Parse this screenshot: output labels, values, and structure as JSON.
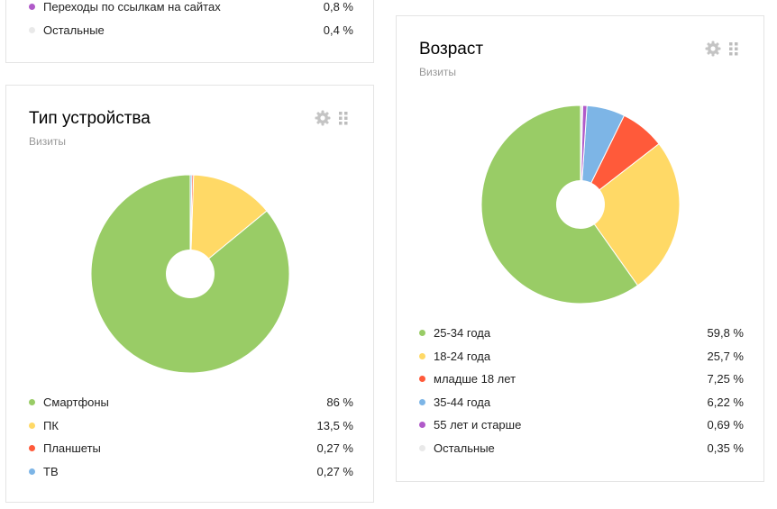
{
  "traffic_card": {
    "items": [
      {
        "label": "Переходы по ссылкам на сайтах",
        "value": "0,8 %",
        "color": "#b05ac9"
      },
      {
        "label": "Остальные",
        "value": "0,4 %",
        "color": "#e9e9e9"
      }
    ]
  },
  "device_card": {
    "title": "Тип устройства",
    "subtitle": "Визиты",
    "icons": [
      "gear-icon",
      "grip-icon"
    ],
    "chart_data": {
      "type": "pie",
      "categories": [
        "Смартфоны",
        "ПК",
        "Планшеты",
        "ТВ"
      ],
      "values": [
        86,
        13.5,
        0.27,
        0.27
      ],
      "colors": [
        "#99cc66",
        "#ffd966",
        "#ff5a3a",
        "#7db5e6"
      ]
    },
    "legend": [
      {
        "label": "Смартфоны",
        "value": "86 %",
        "color": "#99cc66"
      },
      {
        "label": "ПК",
        "value": "13,5 %",
        "color": "#ffd966"
      },
      {
        "label": "Планшеты",
        "value": "0,27 %",
        "color": "#ff5a3a"
      },
      {
        "label": "ТВ",
        "value": "0,27 %",
        "color": "#7db5e6"
      }
    ]
  },
  "age_card": {
    "title": "Возраст",
    "subtitle": "Визиты",
    "icons": [
      "gear-icon",
      "grip-icon"
    ],
    "chart_data": {
      "type": "pie",
      "categories": [
        "25-34 года",
        "18-24 года",
        "младше 18 лет",
        "35-44 года",
        "55 лет и старше",
        "Остальные"
      ],
      "values": [
        59.8,
        25.7,
        7.25,
        6.22,
        0.69,
        0.35
      ],
      "colors": [
        "#99cc66",
        "#ffd966",
        "#ff5a3a",
        "#7db5e6",
        "#b05ac9",
        "#e9e9e9"
      ]
    },
    "legend": [
      {
        "label": "25-34 года",
        "value": "59,8 %",
        "color": "#99cc66"
      },
      {
        "label": "18-24 года",
        "value": "25,7 %",
        "color": "#ffd966"
      },
      {
        "label": "младше 18 лет",
        "value": "7,25 %",
        "color": "#ff5a3a"
      },
      {
        "label": "35-44 года",
        "value": "6,22 %",
        "color": "#7db5e6"
      },
      {
        "label": "55 лет и старше",
        "value": "0,69 %",
        "color": "#b05ac9"
      },
      {
        "label": "Остальные",
        "value": "0,35 %",
        "color": "#e9e9e9"
      }
    ]
  }
}
